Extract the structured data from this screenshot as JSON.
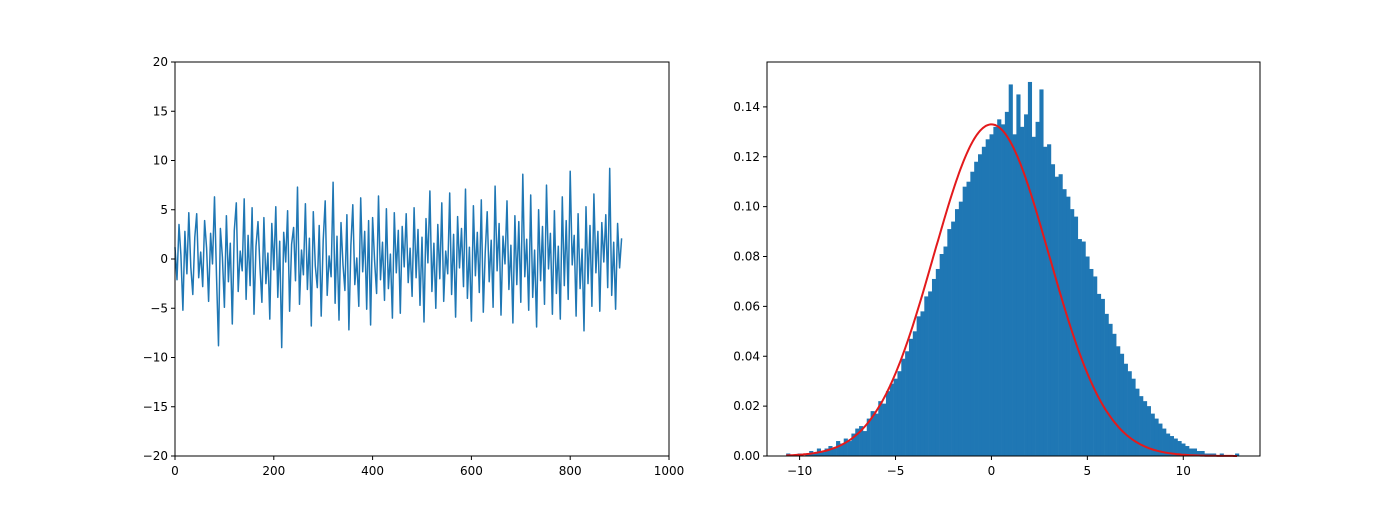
{
  "colors": {
    "series": "#1f77b4",
    "fit_curve": "#e31a1c",
    "axes": "#000000",
    "background": "#ffffff"
  },
  "chart_data": [
    {
      "type": "line",
      "title": "",
      "xlabel": "",
      "ylabel": "",
      "xlim": [
        0,
        1000
      ],
      "ylim": [
        -20,
        20
      ],
      "xticks": [
        0,
        200,
        400,
        600,
        800,
        1000
      ],
      "xtick_labels": [
        "0",
        "200",
        "400",
        "600",
        "800",
        "1000"
      ],
      "yticks": [
        -20,
        -15,
        -10,
        -5,
        0,
        5,
        10,
        15,
        20
      ],
      "ytick_labels": [
        "−20",
        "−15",
        "−10",
        "−5",
        "0",
        "5",
        "10",
        "15",
        "20"
      ],
      "grid": false,
      "legend": "none",
      "series": [
        {
          "x_start": 0,
          "x_step": 4,
          "values": [
            1.2,
            -2.1,
            3.5,
            0.4,
            -5.2,
            2.8,
            -1.5,
            4.7,
            -0.8,
            -3.6,
            2.2,
            4.6,
            -1.9,
            0.7,
            -2.8,
            3.9,
            1.1,
            -4.3,
            2.6,
            -0.5,
            6.3,
            -1.7,
            -8.8,
            3.1,
            0.2,
            -4.9,
            4.4,
            -2.3,
            1.6,
            -6.6,
            2.9,
            5.7,
            -3.3,
            0.8,
            -1.2,
            6.1,
            -4.1,
            2.4,
            -2.7,
            5.2,
            -5.6,
            1.3,
            3.8,
            -0.9,
            -4.4,
            4.2,
            -2.5,
            0.6,
            -6.1,
            3.6,
            -1.1,
            5.3,
            -3.9,
            1.8,
            -9.0,
            2.7,
            -0.3,
            4.9,
            -5.3,
            1.5,
            3.2,
            -2.2,
            7.3,
            -4.6,
            0.9,
            -1.6,
            5.6,
            -3.1,
            2.1,
            -6.8,
            4.8,
            -0.7,
            -2.9,
            3.4,
            -5.8,
            1.9,
            5.9,
            -3.7,
            0.3,
            -1.8,
            7.8,
            -4.5,
            2.3,
            -6.2,
            3.7,
            -0.6,
            -3.2,
            4.5,
            -7.2,
            1.4,
            5.5,
            -2.6,
            0.1,
            -4.8,
            6.2,
            -1.3,
            2.8,
            -5.1,
            3.9,
            -6.7,
            4.2,
            -0.2,
            -3.5,
            6.4,
            -2.1,
            1.7,
            -4.2,
            5.1,
            -3.0,
            0.5,
            -6.0,
            4.7,
            -1.4,
            2.9,
            -5.5,
            3.3,
            -0.8,
            4.6,
            -2.4,
            1.1,
            -3.8,
            5.2,
            -1.9,
            3.0,
            -4.7,
            2.2,
            -6.4,
            4.1,
            -0.4,
            6.9,
            -3.3,
            1.6,
            -5.0,
            3.5,
            -2.0,
            5.7,
            -4.3,
            0.8,
            -1.5,
            6.7,
            -3.6,
            2.5,
            -5.9,
            4.3,
            -0.9,
            3.1,
            -2.8,
            7.1,
            -4.0,
            1.2,
            -6.3,
            5.4,
            -1.7,
            2.7,
            -3.4,
            6.0,
            -5.4,
            0.6,
            4.8,
            -2.3,
            1.9,
            -4.9,
            7.4,
            -1.2,
            3.6,
            -5.7,
            2.3,
            -0.5,
            5.9,
            -3.1,
            1.4,
            -6.5,
            4.4,
            -2.6,
            3.8,
            -4.4,
            8.6,
            -1.8,
            2.0,
            -5.2,
            6.5,
            -3.9,
            0.9,
            -6.9,
            5.0,
            -2.2,
            3.3,
            -4.6,
            7.5,
            -1.0,
            2.6,
            -5.6,
            4.9,
            -3.5,
            1.3,
            -6.1,
            6.3,
            -2.7,
            3.9,
            -4.1,
            8.9,
            -0.6,
            2.4,
            -5.8,
            4.6,
            -3.0,
            1.0,
            -7.3,
            5.3,
            -2.5,
            3.4,
            -4.8,
            6.6,
            -1.4,
            2.8,
            -5.3,
            3.7,
            -0.3,
            4.5,
            -2.9,
            9.2,
            -3.7,
            1.7,
            -5.1,
            3.6,
            -0.9,
            2.1
          ]
        }
      ]
    },
    {
      "type": "bar",
      "subtype": "histogram",
      "title": "",
      "xlabel": "",
      "ylabel": "",
      "xlim": [
        -11.7,
        14.0
      ],
      "ylim": [
        0,
        0.158
      ],
      "xticks": [
        -10,
        -5,
        0,
        5,
        10
      ],
      "xtick_labels": [
        "−10",
        "−5",
        "0",
        "5",
        "10"
      ],
      "yticks": [
        0,
        0.02,
        0.04,
        0.06,
        0.08,
        0.1,
        0.12,
        0.14
      ],
      "ytick_labels": [
        "0.00",
        "0.02",
        "0.04",
        "0.06",
        "0.08",
        "0.10",
        "0.12",
        "0.14"
      ],
      "grid": false,
      "legend": "none",
      "bins": {
        "start": -10.7,
        "bin_width": 0.2,
        "count": 118,
        "densities": [
          0.001,
          0.0,
          0.0,
          0.001,
          0.0,
          0.001,
          0.002,
          0.001,
          0.003,
          0.002,
          0.003,
          0.004,
          0.003,
          0.006,
          0.005,
          0.007,
          0.006,
          0.009,
          0.011,
          0.012,
          0.01,
          0.015,
          0.018,
          0.017,
          0.022,
          0.021,
          0.026,
          0.029,
          0.031,
          0.034,
          0.039,
          0.042,
          0.047,
          0.05,
          0.056,
          0.058,
          0.064,
          0.066,
          0.071,
          0.075,
          0.081,
          0.084,
          0.091,
          0.094,
          0.099,
          0.102,
          0.108,
          0.11,
          0.114,
          0.118,
          0.121,
          0.124,
          0.127,
          0.129,
          0.132,
          0.135,
          0.133,
          0.138,
          0.149,
          0.129,
          0.145,
          0.132,
          0.137,
          0.15,
          0.128,
          0.134,
          0.147,
          0.124,
          0.125,
          0.117,
          0.112,
          0.113,
          0.107,
          0.104,
          0.099,
          0.096,
          0.087,
          0.086,
          0.08,
          0.075,
          0.072,
          0.065,
          0.063,
          0.057,
          0.053,
          0.049,
          0.044,
          0.041,
          0.037,
          0.034,
          0.031,
          0.027,
          0.024,
          0.022,
          0.02,
          0.017,
          0.015,
          0.013,
          0.011,
          0.009,
          0.008,
          0.007,
          0.006,
          0.005,
          0.004,
          0.003,
          0.003,
          0.002,
          0.002,
          0.001,
          0.001,
          0.001,
          0.0,
          0.001,
          0.0,
          0.0,
          0.0,
          0.001
        ]
      },
      "fit_curve": {
        "kind": "normal-pdf",
        "mean": 0.0,
        "std": 3.0,
        "x_range": [
          -10.7,
          12.8
        ]
      }
    }
  ]
}
